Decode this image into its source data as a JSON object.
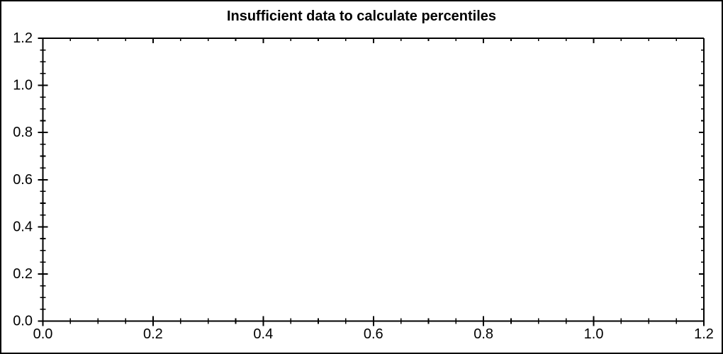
{
  "figure": {
    "background_color": "#ffffff",
    "border_color": "#000000"
  },
  "chart_data": {
    "type": "scatter",
    "title": "Insufficient data to calculate percentiles",
    "xlabel": "",
    "ylabel": "",
    "xlim": [
      0.0,
      1.2
    ],
    "ylim": [
      0.0,
      1.2
    ],
    "x_major_ticks": [
      0.0,
      0.2,
      0.4,
      0.6,
      0.8,
      1.0,
      1.2
    ],
    "x_tick_labels": [
      "0.0",
      "0.2",
      "0.4",
      "0.6",
      "0.8",
      "1.0",
      "1.2"
    ],
    "y_major_ticks": [
      0.0,
      0.2,
      0.4,
      0.6,
      0.8,
      1.0,
      1.2
    ],
    "y_tick_labels": [
      "0.0",
      "0.2",
      "0.4",
      "0.6",
      "0.8",
      "1.0",
      "1.2"
    ],
    "minor_tick_interval": 0.05,
    "grid": false,
    "series": [],
    "axis_color": "#000000",
    "text_color": "#000000",
    "plot_background": "#ffffff"
  }
}
